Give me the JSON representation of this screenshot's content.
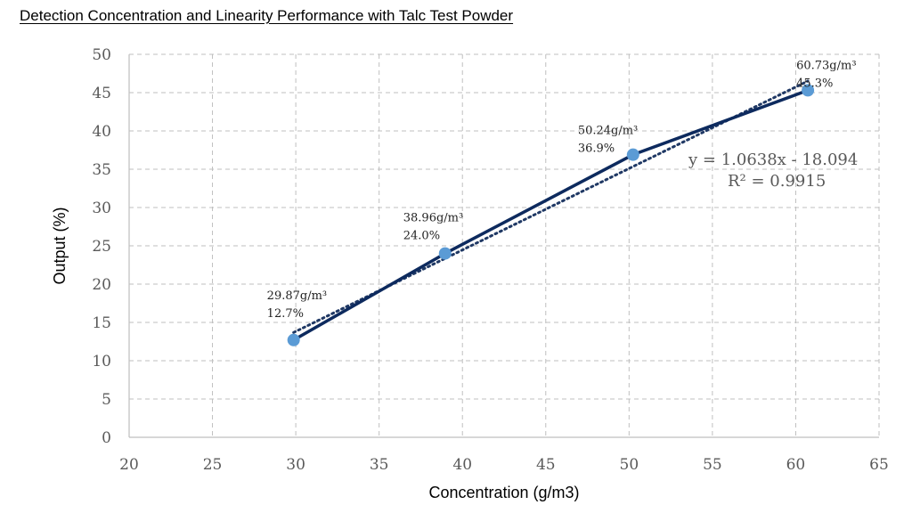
{
  "chart_data": {
    "type": "line",
    "title": "Detection Concentration and Linearity Performance with Talc Test Powder",
    "xlabel": "Concentration (g/m3)",
    "ylabel": "Output (%)",
    "xlim": [
      20,
      65
    ],
    "ylim": [
      0,
      50
    ],
    "x_ticks": [
      20,
      25,
      30,
      35,
      40,
      45,
      50,
      55,
      60,
      65
    ],
    "y_ticks": [
      0,
      5,
      10,
      15,
      20,
      25,
      30,
      35,
      40,
      45,
      50
    ],
    "grid": true,
    "series": [
      {
        "x": [
          29.87,
          38.96,
          50.24,
          60.73
        ],
        "y": [
          12.7,
          24.0,
          36.9,
          45.3
        ],
        "labels": [
          [
            "29.87g/m³",
            "12.7%"
          ],
          [
            "38.96g/m³",
            "24.0%"
          ],
          [
            "50.24g/m³",
            "36.9%"
          ],
          [
            "60.73g/m³",
            "45.3%"
          ]
        ]
      }
    ],
    "trendline": {
      "type": "linear",
      "slope": 1.0638,
      "intercept": -18.094,
      "equation": "y = 1.0638x - 18.094",
      "r2_label": "R² = 0.9915"
    },
    "colors": {
      "line": "#0d2a5e",
      "marker": "#5b9bd5",
      "trendline": "#1f3864",
      "grid": "#bfbfbf",
      "axis": "#bfbfbf"
    }
  }
}
